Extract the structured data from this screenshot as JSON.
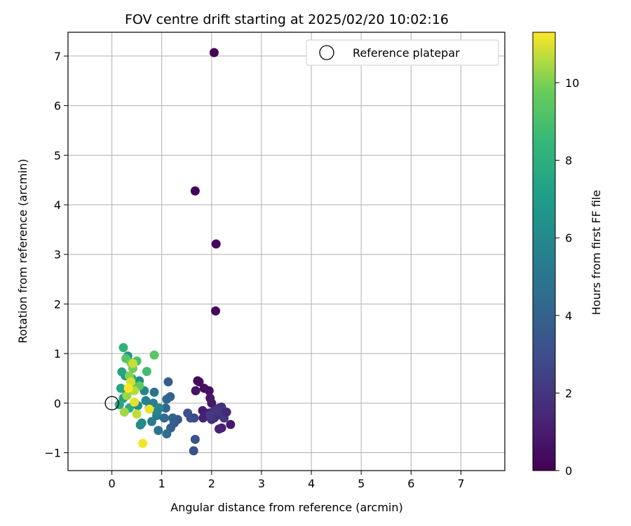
{
  "chart_data": {
    "type": "scatter",
    "title": "FOV centre drift starting at 2025/02/20 10:02:16",
    "xlabel": "Angular distance from reference (arcmin)",
    "ylabel": "Rotation from reference (arcmin)",
    "xlim": [
      -0.88,
      7.88
    ],
    "ylim": [
      -1.36,
      7.48
    ],
    "xticks": [
      0,
      1,
      2,
      3,
      4,
      5,
      6,
      7
    ],
    "yticks": [
      -1,
      0,
      1,
      2,
      3,
      4,
      5,
      6,
      7
    ],
    "grid": true,
    "legend": {
      "placement": "top-right",
      "entries": [
        "Reference platepar"
      ]
    },
    "colorbar": {
      "label": "Hours from first FF file",
      "range": [
        0,
        11.3
      ],
      "ticks": [
        0,
        2,
        4,
        6,
        8,
        10
      ],
      "colormap": "viridis"
    },
    "reference_point": {
      "x": 0,
      "y": 0
    },
    "series": [
      {
        "points": [
          {
            "x": 2.05,
            "y": 7.07,
            "h": 0.1
          },
          {
            "x": 1.67,
            "y": 4.28,
            "h": 0.15
          },
          {
            "x": 2.09,
            "y": 3.21,
            "h": 0.2
          },
          {
            "x": 2.08,
            "y": 1.86,
            "h": 0.25
          },
          {
            "x": 1.72,
            "y": 0.45,
            "h": 0.3
          },
          {
            "x": 1.75,
            "y": 0.43,
            "h": 0.4
          },
          {
            "x": 1.85,
            "y": 0.3,
            "h": 0.5
          },
          {
            "x": 1.95,
            "y": 0.25,
            "h": 0.6
          },
          {
            "x": 1.68,
            "y": 0.25,
            "h": 0.7
          },
          {
            "x": 1.97,
            "y": 0.1,
            "h": 0.8
          },
          {
            "x": 2.0,
            "y": 0.0,
            "h": 0.9
          },
          {
            "x": 1.82,
            "y": -0.15,
            "h": 1.0
          },
          {
            "x": 1.87,
            "y": -0.25,
            "h": 1.1
          },
          {
            "x": 1.83,
            "y": -0.3,
            "h": 1.2
          },
          {
            "x": 1.95,
            "y": -0.2,
            "h": 1.3
          },
          {
            "x": 2.02,
            "y": -0.18,
            "h": 1.4
          },
          {
            "x": 2.05,
            "y": -0.3,
            "h": 1.5
          },
          {
            "x": 2.1,
            "y": -0.25,
            "h": 1.6
          },
          {
            "x": 2.15,
            "y": -0.1,
            "h": 1.7
          },
          {
            "x": 2.2,
            "y": -0.08,
            "h": 1.8
          },
          {
            "x": 2.18,
            "y": -0.2,
            "h": 1.9
          },
          {
            "x": 2.25,
            "y": -0.3,
            "h": 2.0
          },
          {
            "x": 2.3,
            "y": -0.18,
            "h": 1.5
          },
          {
            "x": 2.38,
            "y": -0.43,
            "h": 0.9
          },
          {
            "x": 2.2,
            "y": -0.5,
            "h": 1.1
          },
          {
            "x": 2.15,
            "y": -0.52,
            "h": 1.3
          },
          {
            "x": 2.0,
            "y": -0.33,
            "h": 1.8
          },
          {
            "x": 2.08,
            "y": -0.15,
            "h": 2.1
          },
          {
            "x": 1.97,
            "y": -0.25,
            "h": 2.2
          },
          {
            "x": 1.65,
            "y": -0.3,
            "h": 2.8
          },
          {
            "x": 1.58,
            "y": -0.3,
            "h": 3.0
          },
          {
            "x": 1.52,
            "y": -0.2,
            "h": 3.2
          },
          {
            "x": 1.67,
            "y": -0.73,
            "h": 3.3
          },
          {
            "x": 1.64,
            "y": -0.96,
            "h": 3.1
          },
          {
            "x": 1.32,
            "y": -0.33,
            "h": 3.5
          },
          {
            "x": 1.25,
            "y": -0.4,
            "h": 3.6
          },
          {
            "x": 1.18,
            "y": -0.5,
            "h": 3.8
          },
          {
            "x": 1.22,
            "y": -0.3,
            "h": 3.9
          },
          {
            "x": 1.13,
            "y": 0.43,
            "h": 3.7
          },
          {
            "x": 1.17,
            "y": 0.13,
            "h": 4.0
          },
          {
            "x": 1.1,
            "y": 0.08,
            "h": 4.1
          },
          {
            "x": 1.08,
            "y": -0.1,
            "h": 4.2
          },
          {
            "x": 1.05,
            "y": -0.3,
            "h": 4.4
          },
          {
            "x": 1.1,
            "y": -0.62,
            "h": 4.6
          },
          {
            "x": 0.93,
            "y": -0.55,
            "h": 4.8
          },
          {
            "x": 0.85,
            "y": 0.22,
            "h": 4.9
          },
          {
            "x": 0.9,
            "y": -0.25,
            "h": 5.0
          },
          {
            "x": 0.8,
            "y": -0.37,
            "h": 5.2
          },
          {
            "x": 0.83,
            "y": 0.0,
            "h": 5.4
          },
          {
            "x": 0.75,
            "y": -0.1,
            "h": 5.5
          },
          {
            "x": 0.68,
            "y": 0.05,
            "h": 5.6
          },
          {
            "x": 0.65,
            "y": 0.25,
            "h": 5.8
          },
          {
            "x": 0.6,
            "y": -0.4,
            "h": 6.0
          },
          {
            "x": 0.57,
            "y": -0.44,
            "h": 6.1
          },
          {
            "x": 0.55,
            "y": 0.45,
            "h": 6.2
          },
          {
            "x": 0.52,
            "y": -0.05,
            "h": 6.3
          },
          {
            "x": 0.95,
            "y": -0.1,
            "h": 6.0
          },
          {
            "x": 0.9,
            "y": -0.18,
            "h": 5.7
          },
          {
            "x": 0.32,
            "y": 0.95,
            "h": 6.5
          },
          {
            "x": 0.3,
            "y": 0.2,
            "h": 6.8
          },
          {
            "x": 0.27,
            "y": 0.55,
            "h": 7.0
          },
          {
            "x": 0.23,
            "y": 0.1,
            "h": 7.2
          },
          {
            "x": 0.2,
            "y": 0.63,
            "h": 7.4
          },
          {
            "x": 0.18,
            "y": 0.3,
            "h": 7.5
          },
          {
            "x": 0.15,
            "y": -0.03,
            "h": 7.6
          },
          {
            "x": 0.35,
            "y": -0.1,
            "h": 7.8
          },
          {
            "x": 0.4,
            "y": 0.5,
            "h": 8.0
          },
          {
            "x": 0.23,
            "y": 1.12,
            "h": 8.2
          },
          {
            "x": 0.7,
            "y": 0.64,
            "h": 8.8
          },
          {
            "x": 0.5,
            "y": 0.85,
            "h": 9.0
          },
          {
            "x": 0.45,
            "y": 0.3,
            "h": 9.2
          },
          {
            "x": 0.28,
            "y": 0.9,
            "h": 9.3
          },
          {
            "x": 0.85,
            "y": 0.97,
            "h": 9.4
          },
          {
            "x": 0.55,
            "y": 0.35,
            "h": 9.5
          },
          {
            "x": 0.38,
            "y": 0.82,
            "h": 9.7
          },
          {
            "x": 0.42,
            "y": 0.7,
            "h": 9.9
          },
          {
            "x": 0.35,
            "y": 0.55,
            "h": 10.1
          },
          {
            "x": 0.3,
            "y": 0.15,
            "h": 10.3
          },
          {
            "x": 0.25,
            "y": -0.18,
            "h": 10.4
          },
          {
            "x": 0.45,
            "y": 0.25,
            "h": 10.6
          },
          {
            "x": 0.5,
            "y": -0.22,
            "h": 10.7
          },
          {
            "x": 0.42,
            "y": 0.8,
            "h": 10.8
          },
          {
            "x": 0.38,
            "y": 0.43,
            "h": 10.9
          },
          {
            "x": 0.45,
            "y": 0.02,
            "h": 11.0
          },
          {
            "x": 0.75,
            "y": -0.12,
            "h": 11.1
          },
          {
            "x": 0.62,
            "y": -0.81,
            "h": 11.2
          },
          {
            "x": 0.33,
            "y": 0.3,
            "h": 11.3
          }
        ]
      }
    ]
  }
}
